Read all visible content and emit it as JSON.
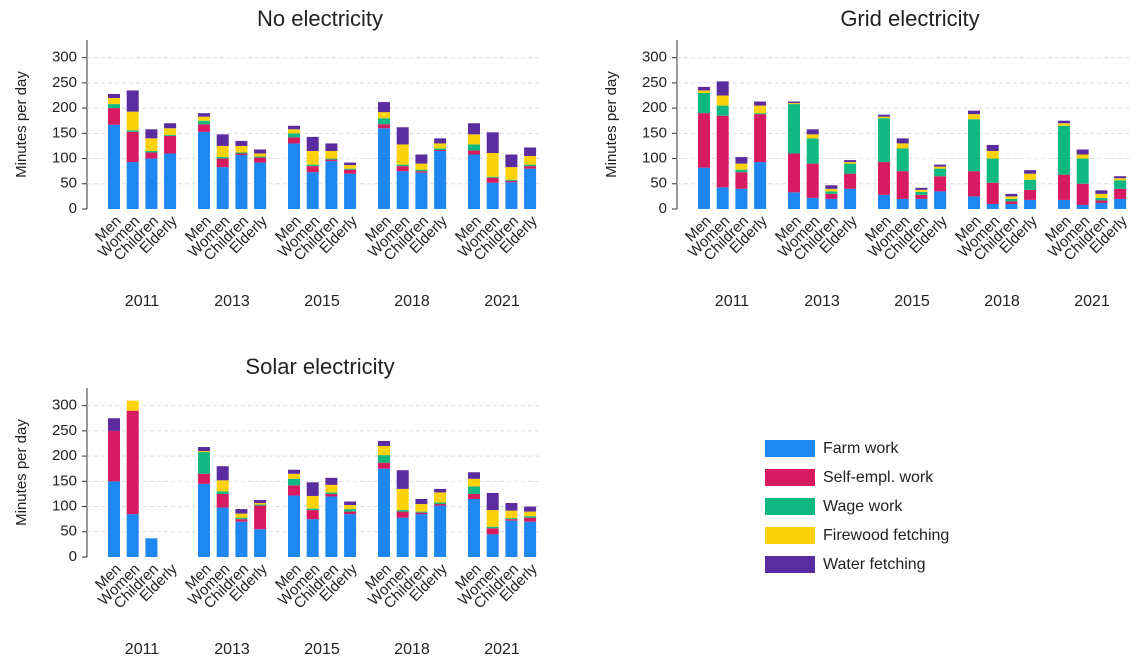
{
  "legend": [
    {
      "name": "Farm work",
      "color": "#1e88f0"
    },
    {
      "name": "Self-empl. work",
      "color": "#d81b60"
    },
    {
      "name": "Wage work",
      "color": "#10b981"
    },
    {
      "name": "Firewood fetching",
      "color": "#fdd20a"
    },
    {
      "name": "Water fetching",
      "color": "#5b2ca0"
    }
  ],
  "chart_data": [
    {
      "type": "bar",
      "stacked": true,
      "title": "No electricity",
      "ylabel": "Minutes per day",
      "groups": [
        "2011",
        "2013",
        "2015",
        "2018",
        "2021"
      ],
      "categories": [
        "Men",
        "Women",
        "Children",
        "Elderly",
        "Men",
        "Women",
        "Children",
        "Elderly",
        "Men",
        "Women",
        "Children",
        "Elderly",
        "Men",
        "Women",
        "Children",
        "Elderly",
        "Men",
        "Women",
        "Children",
        "Elderly"
      ],
      "ylim": [
        0,
        335
      ],
      "yticks": [
        0,
        50,
        100,
        150,
        200,
        250,
        300
      ],
      "grid": true,
      "series": [
        {
          "values": [
            167,
            93,
            100,
            110,
            153,
            83,
            107,
            92,
            130,
            73,
            95,
            70,
            160,
            75,
            72,
            115,
            108,
            52,
            53,
            80
          ]
        },
        {
          "values": [
            33,
            60,
            12,
            35,
            15,
            17,
            3,
            10,
            12,
            12,
            3,
            8,
            8,
            10,
            3,
            2,
            8,
            10,
            3,
            5
          ]
        },
        {
          "values": [
            8,
            3,
            3,
            2,
            7,
            3,
            2,
            2,
            8,
            3,
            2,
            2,
            12,
            3,
            3,
            3,
            12,
            2,
            2,
            3
          ]
        },
        {
          "values": [
            12,
            37,
            25,
            13,
            8,
            22,
            13,
            6,
            8,
            27,
            15,
            7,
            12,
            40,
            12,
            10,
            20,
            47,
            25,
            17
          ]
        },
        {
          "values": [
            8,
            42,
            18,
            10,
            7,
            23,
            10,
            8,
            7,
            28,
            15,
            5,
            20,
            34,
            18,
            10,
            22,
            41,
            25,
            17
          ]
        }
      ]
    },
    {
      "type": "bar",
      "stacked": true,
      "title": "Grid electricity",
      "ylabel": "Minutes per day",
      "groups": [
        "2011",
        "2013",
        "2015",
        "2018",
        "2021"
      ],
      "categories": [
        "Men",
        "Women",
        "Children",
        "Elderly",
        "Men",
        "Women",
        "Children",
        "Elderly",
        "Men",
        "Women",
        "Children",
        "Elderly",
        "Men",
        "Women",
        "Children",
        "Elderly",
        "Men",
        "Women",
        "Children",
        "Elderly"
      ],
      "ylim": [
        0,
        335
      ],
      "yticks": [
        0,
        50,
        100,
        150,
        200,
        250,
        300
      ],
      "grid": true,
      "series": [
        {
          "values": [
            82,
            43,
            40,
            93,
            33,
            22,
            20,
            40,
            28,
            20,
            20,
            35,
            25,
            10,
            10,
            18,
            18,
            8,
            12,
            20
          ]
        },
        {
          "values": [
            108,
            142,
            33,
            95,
            77,
            68,
            10,
            30,
            65,
            55,
            8,
            30,
            50,
            42,
            5,
            20,
            50,
            42,
            5,
            20
          ]
        },
        {
          "values": [
            40,
            20,
            5,
            2,
            98,
            50,
            5,
            20,
            87,
            45,
            6,
            15,
            103,
            48,
            5,
            20,
            97,
            50,
            5,
            17
          ]
        },
        {
          "values": [
            5,
            20,
            12,
            15,
            2,
            8,
            5,
            3,
            3,
            10,
            4,
            4,
            10,
            15,
            5,
            12,
            5,
            8,
            8,
            4
          ]
        },
        {
          "values": [
            7,
            28,
            13,
            8,
            3,
            10,
            7,
            4,
            4,
            10,
            4,
            4,
            7,
            12,
            5,
            7,
            5,
            10,
            7,
            4
          ]
        }
      ]
    },
    {
      "type": "bar",
      "stacked": true,
      "title": "Solar electricity",
      "ylabel": "Minutes per day",
      "groups": [
        "2011",
        "2013",
        "2015",
        "2018",
        "2021"
      ],
      "categories": [
        "Men",
        "Women",
        "Children",
        "Elderly",
        "Men",
        "Women",
        "Children",
        "Elderly",
        "Men",
        "Women",
        "Children",
        "Elderly",
        "Men",
        "Women",
        "Children",
        "Elderly",
        "Men",
        "Women",
        "Children",
        "Elderly"
      ],
      "ylim": [
        0,
        335
      ],
      "yticks": [
        0,
        50,
        100,
        150,
        200,
        250,
        300
      ],
      "grid": true,
      "series": [
        {
          "values": [
            150,
            85,
            37,
            0,
            145,
            98,
            70,
            55,
            122,
            75,
            120,
            85,
            175,
            78,
            85,
            102,
            115,
            45,
            72,
            70
          ]
        },
        {
          "values": [
            100,
            205,
            0,
            0,
            20,
            27,
            5,
            47,
            20,
            18,
            5,
            5,
            12,
            12,
            3,
            3,
            10,
            12,
            3,
            8
          ]
        },
        {
          "values": [
            0,
            0,
            0,
            0,
            43,
            5,
            3,
            2,
            13,
            3,
            3,
            5,
            15,
            3,
            2,
            3,
            15,
            3,
            2,
            3
          ]
        },
        {
          "values": [
            0,
            20,
            0,
            0,
            2,
            22,
            8,
            3,
            10,
            25,
            15,
            8,
            18,
            42,
            15,
            20,
            15,
            33,
            15,
            9
          ]
        },
        {
          "values": [
            25,
            0,
            0,
            0,
            8,
            28,
            9,
            6,
            8,
            27,
            14,
            7,
            10,
            37,
            10,
            7,
            13,
            34,
            15,
            10
          ]
        }
      ]
    }
  ]
}
